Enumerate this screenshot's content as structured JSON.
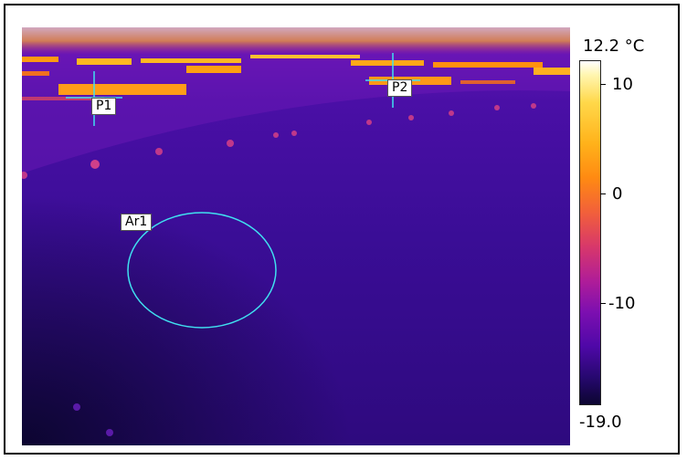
{
  "scale": {
    "max": "12.2 °C",
    "min": "-19.0",
    "ticks": [
      "10",
      "0",
      "-10"
    ]
  },
  "markers": {
    "p1": "P1",
    "p2": "P2",
    "ar1": "Ar1"
  },
  "colors": {
    "background": "#3a0d8c",
    "hot": "#ffd84a",
    "cursor": "#40e0f0"
  }
}
